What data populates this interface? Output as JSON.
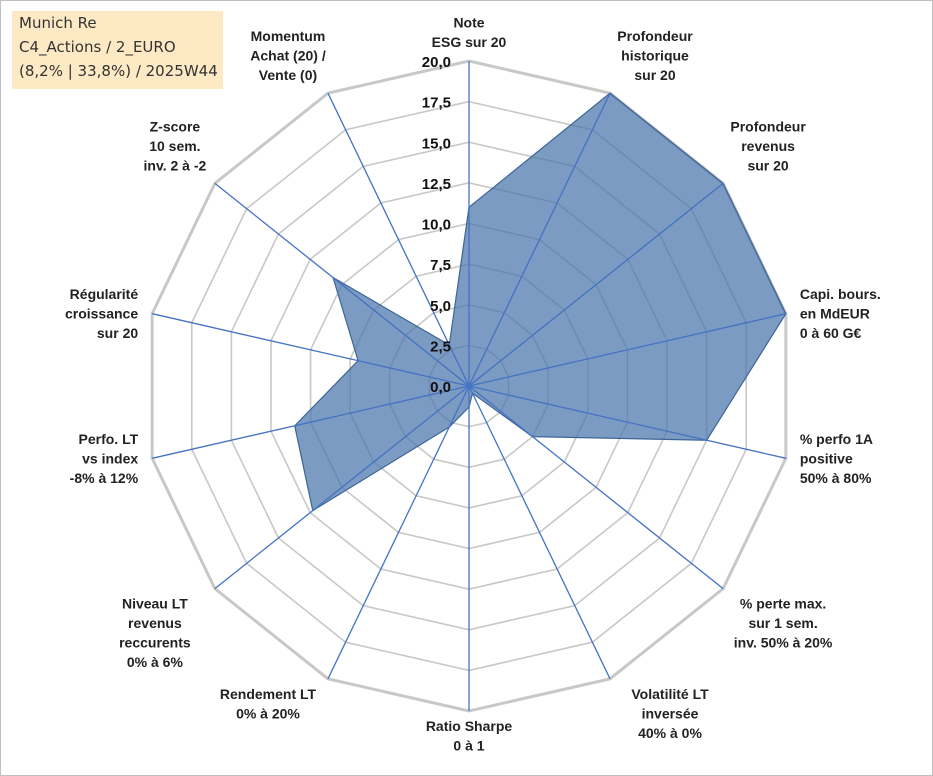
{
  "info_box": {
    "line1": "Munich Re",
    "line2": "C4_Actions / 2_EURO",
    "line3": "(8,2% | 33,8%) / 2025W44"
  },
  "colors": {
    "grid": "#c8c8c8",
    "spoke": "#4472c4",
    "fill": "#4a74aa",
    "stroke": "#3d6698",
    "info_bg": "#fde9c4"
  },
  "chart_data": {
    "type": "radar",
    "title": "",
    "rmin": 0,
    "rmax": 20,
    "tick_step": 2.5,
    "tick_labels": [
      "0,0",
      "2,5",
      "5,0",
      "7,5",
      "10,0",
      "12,5",
      "15,0",
      "17,5",
      "20,0"
    ],
    "axes": [
      [
        "Note",
        "ESG sur 20"
      ],
      [
        "Profondeur",
        "historique",
        "sur 20"
      ],
      [
        "Profondeur",
        "revenus",
        "sur 20"
      ],
      [
        "Capi. bours.",
        "en MdEUR",
        "0 à 60 G€"
      ],
      [
        "% perfo 1A",
        "positive",
        "50% à 80%"
      ],
      [
        "% perte max.",
        "sur 1 sem.",
        "inv. 50% à 20%"
      ],
      [
        "Volatilité LT",
        "inversée",
        "40% à 0%"
      ],
      [
        "Ratio Sharpe",
        "0 à 1"
      ],
      [
        "Rendement LT",
        "0% à 20%"
      ],
      [
        "Niveau LT",
        "revenus",
        "reccurents",
        "0% à 6%"
      ],
      [
        "Perfo. LT",
        "vs index",
        "-8% à 12%"
      ],
      [
        "Régularité",
        "croissance",
        "sur 20"
      ],
      [
        "Z-score",
        "10 sem.",
        "inv. 2 à -2"
      ],
      [
        "Momentum",
        "Achat (20) /",
        "Vente (0)"
      ]
    ],
    "series": [
      {
        "name": "Munich Re",
        "values": [
          11.0,
          20.0,
          20.0,
          20.0,
          15.0,
          5.0,
          0.5,
          1.3,
          2.8,
          12.3,
          11.0,
          7.0,
          10.7,
          2.8
        ]
      }
    ]
  }
}
